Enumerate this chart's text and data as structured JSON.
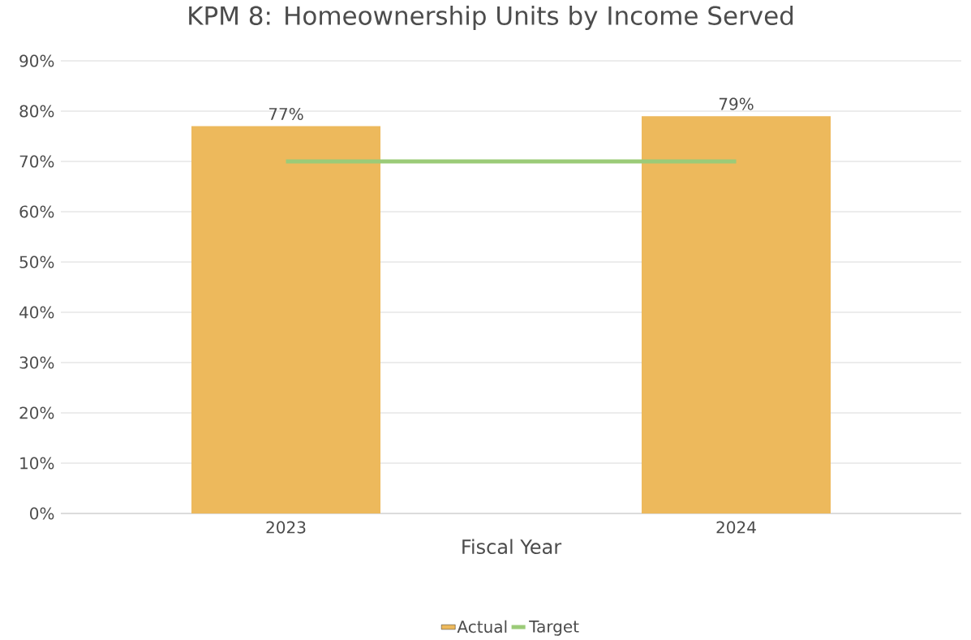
{
  "chart_data": {
    "type": "bar",
    "title": "KPM 8: Homeownership Units by Income Served",
    "xlabel": "Fiscal Year",
    "categories": [
      "2023",
      "2024"
    ],
    "series": [
      {
        "name": "Actual",
        "color": "#edb95c",
        "values": [
          77,
          79
        ],
        "value_labels": [
          "77%",
          "79%"
        ]
      },
      {
        "name": "Target",
        "type": "line",
        "color": "#9bcb78",
        "values": [
          70,
          70
        ]
      }
    ],
    "ylim": [
      0,
      90
    ],
    "yticks": [
      {
        "value": 0,
        "label": "0%"
      },
      {
        "value": 10,
        "label": "10%"
      },
      {
        "value": 20,
        "label": "20%"
      },
      {
        "value": 30,
        "label": "30%"
      },
      {
        "value": 40,
        "label": "40%"
      },
      {
        "value": 50,
        "label": "50%"
      },
      {
        "value": 60,
        "label": "60%"
      },
      {
        "value": 70,
        "label": "70%"
      },
      {
        "value": 80,
        "label": "80%"
      },
      {
        "value": 90,
        "label": "90%"
      }
    ],
    "grid": "y",
    "legend": "bottom",
    "marker": "none"
  }
}
